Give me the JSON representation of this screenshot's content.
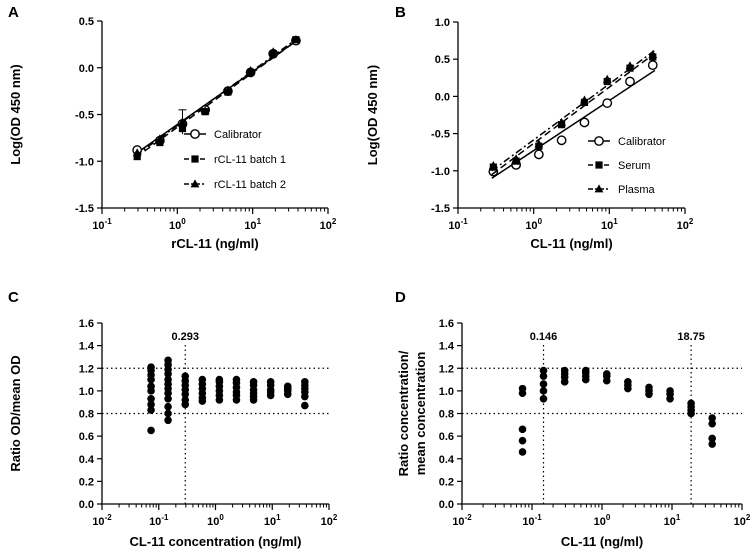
{
  "chart_data": [
    {
      "panel": "A",
      "type": "scatter",
      "xscale": "log",
      "xlim": [
        0.1,
        100
      ],
      "ylim": [
        -1.5,
        0.5
      ],
      "xticks": [
        {
          "b": "10",
          "e": "-1"
        },
        {
          "b": "10",
          "e": "0"
        },
        {
          "b": "10",
          "e": "1"
        },
        {
          "b": "10",
          "e": "2"
        }
      ],
      "yticks": [
        "-1.5",
        "-1.0",
        "-0.5",
        "0.0",
        "0.5"
      ],
      "ytick_values": [
        -1.5,
        -1.0,
        -0.5,
        0.0,
        0.5
      ],
      "xlabel": "rCL-11 (ng/ml)",
      "ylabel": "Log(OD 450 nm)",
      "legend_position": "bottom-right",
      "series": [
        {
          "name": "Calibrator",
          "marker": "circle-open",
          "line": "solid",
          "x": [
            0.293,
            0.586,
            1.17,
            2.34,
            4.69,
            9.38,
            18.75,
            37.5
          ],
          "y": [
            -0.88,
            -0.78,
            -0.6,
            -0.45,
            -0.25,
            -0.05,
            0.15,
            0.29
          ],
          "fit": [
            [
              0.28,
              -0.92
            ],
            [
              40,
              0.3
            ]
          ]
        },
        {
          "name": "rCL-11 batch 1",
          "marker": "square",
          "line": "dash",
          "x": [
            0.293,
            0.586,
            1.17,
            2.34,
            4.69,
            9.38,
            18.75,
            37.5
          ],
          "y": [
            -0.95,
            -0.8,
            -0.65,
            -0.47,
            -0.26,
            -0.05,
            0.15,
            0.3
          ],
          "fit": [
            [
              0.28,
              -0.96
            ],
            [
              40,
              0.3
            ]
          ]
        },
        {
          "name": "rCL-11 batch 2",
          "marker": "triangle",
          "line": "dashdot",
          "x": [
            0.293,
            0.586,
            1.17,
            2.34,
            4.69,
            9.38,
            18.75,
            37.5
          ],
          "y": [
            -0.91,
            -0.76,
            -0.58,
            -0.46,
            -0.24,
            -0.03,
            0.17,
            0.3
          ],
          "errors": [
            0,
            0,
            0.13,
            0,
            0,
            0,
            0,
            0
          ],
          "fit": [
            [
              0.28,
              -0.94
            ],
            [
              40,
              0.32
            ]
          ]
        }
      ]
    },
    {
      "panel": "B",
      "type": "scatter",
      "xscale": "log",
      "xlim": [
        0.1,
        100
      ],
      "ylim": [
        -1.5,
        1.0
      ],
      "xticks": [
        {
          "b": "10",
          "e": "-1"
        },
        {
          "b": "10",
          "e": "0"
        },
        {
          "b": "10",
          "e": "1"
        },
        {
          "b": "10",
          "e": "2"
        }
      ],
      "yticks": [
        "-1.5",
        "-1.0",
        "-0.5",
        "0.0",
        "0.5",
        "1.0"
      ],
      "ytick_values": [
        -1.5,
        -1.0,
        -0.5,
        0.0,
        0.5,
        1.0
      ],
      "xlabel": "CL-11  (ng/ml)",
      "ylabel": "Log(OD 450 nm)",
      "legend_position": "bottom-right",
      "series": [
        {
          "name": "Calibrator",
          "marker": "circle-open",
          "line": "solid",
          "x": [
            0.293,
            0.586,
            1.17,
            2.34,
            4.69,
            9.38,
            18.75,
            37.5
          ],
          "y": [
            -1.01,
            -0.92,
            -0.78,
            -0.59,
            -0.35,
            -0.09,
            0.2,
            0.42
          ],
          "fit": [
            [
              0.28,
              -1.1
            ],
            [
              40,
              0.35
            ]
          ]
        },
        {
          "name": "Serum",
          "marker": "square",
          "line": "dash",
          "x": [
            0.293,
            0.586,
            1.17,
            2.34,
            4.69,
            9.38,
            18.75,
            37.5
          ],
          "y": [
            -0.95,
            -0.87,
            -0.67,
            -0.38,
            -0.08,
            0.2,
            0.38,
            0.53
          ],
          "fit": [
            [
              0.28,
              -1.05
            ],
            [
              40,
              0.58
            ]
          ]
        },
        {
          "name": "Plasma",
          "marker": "triangle",
          "line": "dashdot",
          "x": [
            0.293,
            0.586,
            1.17,
            2.34,
            4.69,
            9.38,
            18.75,
            37.5
          ],
          "y": [
            -0.93,
            -0.84,
            -0.64,
            -0.35,
            -0.05,
            0.23,
            0.41,
            0.56
          ],
          "fit": [
            [
              0.28,
              -1.0
            ],
            [
              40,
              0.62
            ]
          ]
        }
      ]
    },
    {
      "panel": "C",
      "type": "scatter",
      "xscale": "log",
      "xlim": [
        0.01,
        100
      ],
      "ylim": [
        0.0,
        1.6
      ],
      "xticks": [
        {
          "b": "10",
          "e": "-2"
        },
        {
          "b": "10",
          "e": "-1"
        },
        {
          "b": "10",
          "e": "0"
        },
        {
          "b": "10",
          "e": "1"
        },
        {
          "b": "10",
          "e": "2"
        }
      ],
      "yticks": [
        "0.0",
        "0.2",
        "0.4",
        "0.6",
        "0.8",
        "1.0",
        "1.2",
        "1.4",
        "1.6"
      ],
      "ytick_values": [
        0,
        0.2,
        0.4,
        0.6,
        0.8,
        1.0,
        1.2,
        1.4,
        1.6
      ],
      "xlabel": "CL-11 concentration  (ng/ml)",
      "ylabel": "Ratio OD/mean OD",
      "hlines": [
        0.8,
        1.2
      ],
      "vline": 0.293,
      "vline_label": "0.293",
      "groups": [
        {
          "x": 0.0732,
          "y": [
            0.65,
            0.83,
            0.88,
            0.93,
            1.0,
            1.04,
            1.1,
            1.14,
            1.18,
            1.21
          ]
        },
        {
          "x": 0.146,
          "y": [
            0.74,
            0.8,
            0.86,
            0.93,
            0.98,
            1.02,
            1.06,
            1.1,
            1.15,
            1.19,
            1.23,
            1.27
          ]
        },
        {
          "x": 0.293,
          "y": [
            0.88,
            0.92,
            0.97,
            1.01,
            1.05,
            1.09,
            1.13
          ]
        },
        {
          "x": 0.586,
          "y": [
            0.91,
            0.94,
            0.98,
            1.02,
            1.06,
            1.1
          ]
        },
        {
          "x": 1.17,
          "y": [
            0.92,
            0.96,
            1.0,
            1.04,
            1.08,
            1.1
          ]
        },
        {
          "x": 2.34,
          "y": [
            0.92,
            0.96,
            0.99,
            1.03,
            1.07,
            1.1
          ]
        },
        {
          "x": 4.69,
          "y": [
            0.92,
            0.95,
            0.98,
            1.01,
            1.05,
            1.08
          ]
        },
        {
          "x": 9.38,
          "y": [
            0.96,
            0.99,
            1.01,
            1.05,
            1.08
          ]
        },
        {
          "x": 18.75,
          "y": [
            0.97,
            1.0,
            1.02,
            1.04
          ]
        },
        {
          "x": 37.5,
          "y": [
            0.87,
            0.95,
            0.99,
            1.02,
            1.05,
            1.08
          ]
        }
      ]
    },
    {
      "panel": "D",
      "type": "scatter",
      "xscale": "log",
      "xlim": [
        0.01,
        100
      ],
      "ylim": [
        0.0,
        1.6
      ],
      "xticks": [
        {
          "b": "10",
          "e": "-2"
        },
        {
          "b": "10",
          "e": "-1"
        },
        {
          "b": "10",
          "e": "0"
        },
        {
          "b": "10",
          "e": "1"
        },
        {
          "b": "10",
          "e": "2"
        }
      ],
      "yticks": [
        "0.0",
        "0.2",
        "0.4",
        "0.6",
        "0.8",
        "1.0",
        "1.2",
        "1.4",
        "1.6"
      ],
      "ytick_values": [
        0,
        0.2,
        0.4,
        0.6,
        0.8,
        1.0,
        1.2,
        1.4,
        1.6
      ],
      "xlabel": "CL-11  (ng/ml)",
      "ylabel": "Ratio concentration/",
      "ylabel2": "mean concentration",
      "hlines": [
        0.8,
        1.2
      ],
      "vlines": [
        0.146,
        18.75
      ],
      "vline_labels": [
        "0.146",
        "18.75"
      ],
      "groups": [
        {
          "x": 0.0732,
          "y": [
            0.46,
            0.56,
            0.66,
            0.98,
            1.02
          ]
        },
        {
          "x": 0.146,
          "y": [
            0.93,
            1.0,
            1.06,
            1.13,
            1.18
          ]
        },
        {
          "x": 0.293,
          "y": [
            1.08,
            1.12,
            1.15,
            1.18
          ]
        },
        {
          "x": 0.586,
          "y": [
            1.1,
            1.13,
            1.16,
            1.18
          ]
        },
        {
          "x": 1.17,
          "y": [
            1.09,
            1.13,
            1.15
          ]
        },
        {
          "x": 2.34,
          "y": [
            1.02,
            1.05,
            1.08
          ]
        },
        {
          "x": 4.69,
          "y": [
            0.97,
            1.0,
            1.03
          ]
        },
        {
          "x": 9.38,
          "y": [
            0.93,
            0.97,
            1.0
          ]
        },
        {
          "x": 18.75,
          "y": [
            0.8,
            0.83,
            0.86,
            0.89
          ]
        },
        {
          "x": 37.5,
          "y": [
            0.53,
            0.58,
            0.71,
            0.76
          ]
        }
      ]
    }
  ]
}
